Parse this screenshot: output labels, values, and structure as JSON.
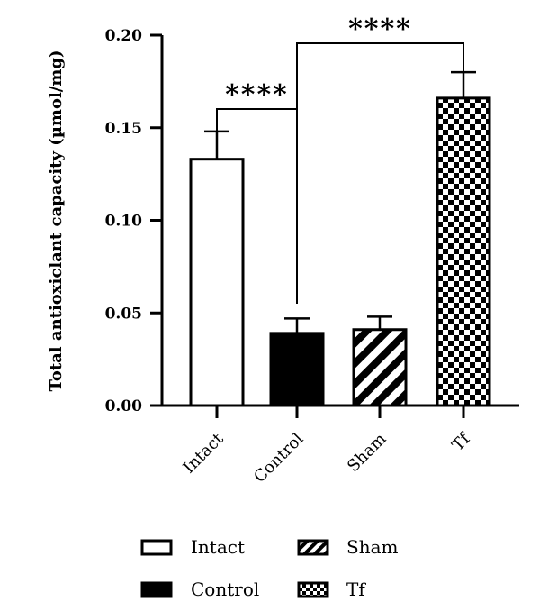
{
  "chart_data": {
    "type": "bar",
    "categories": [
      "Intact",
      "Control",
      "Sham",
      "Tf"
    ],
    "values": [
      0.133,
      0.039,
      0.041,
      0.166
    ],
    "errors": [
      0.015,
      0.008,
      0.007,
      0.014
    ],
    "patterns": [
      "open",
      "solid",
      "diagonal-stripes",
      "checkerboard"
    ],
    "ylabel": "Total antioxiclant capacity (µmol/mg)",
    "xlabel": "",
    "ylim": [
      0,
      0.2
    ],
    "yticks": [
      "0.00",
      "0.05",
      "0.10",
      "0.15",
      "0.20"
    ],
    "grid": false,
    "legend": {
      "placement": "bottom",
      "entries": [
        "Intact",
        "Sham",
        "Control",
        "Tf"
      ]
    },
    "significance": [
      {
        "from": "Intact",
        "to": "Control",
        "label": "****"
      },
      {
        "from": "Control",
        "to": "Tf",
        "label": "****"
      }
    ]
  },
  "colors": {
    "bar_edge": "#000000",
    "background": "#ffffff"
  }
}
